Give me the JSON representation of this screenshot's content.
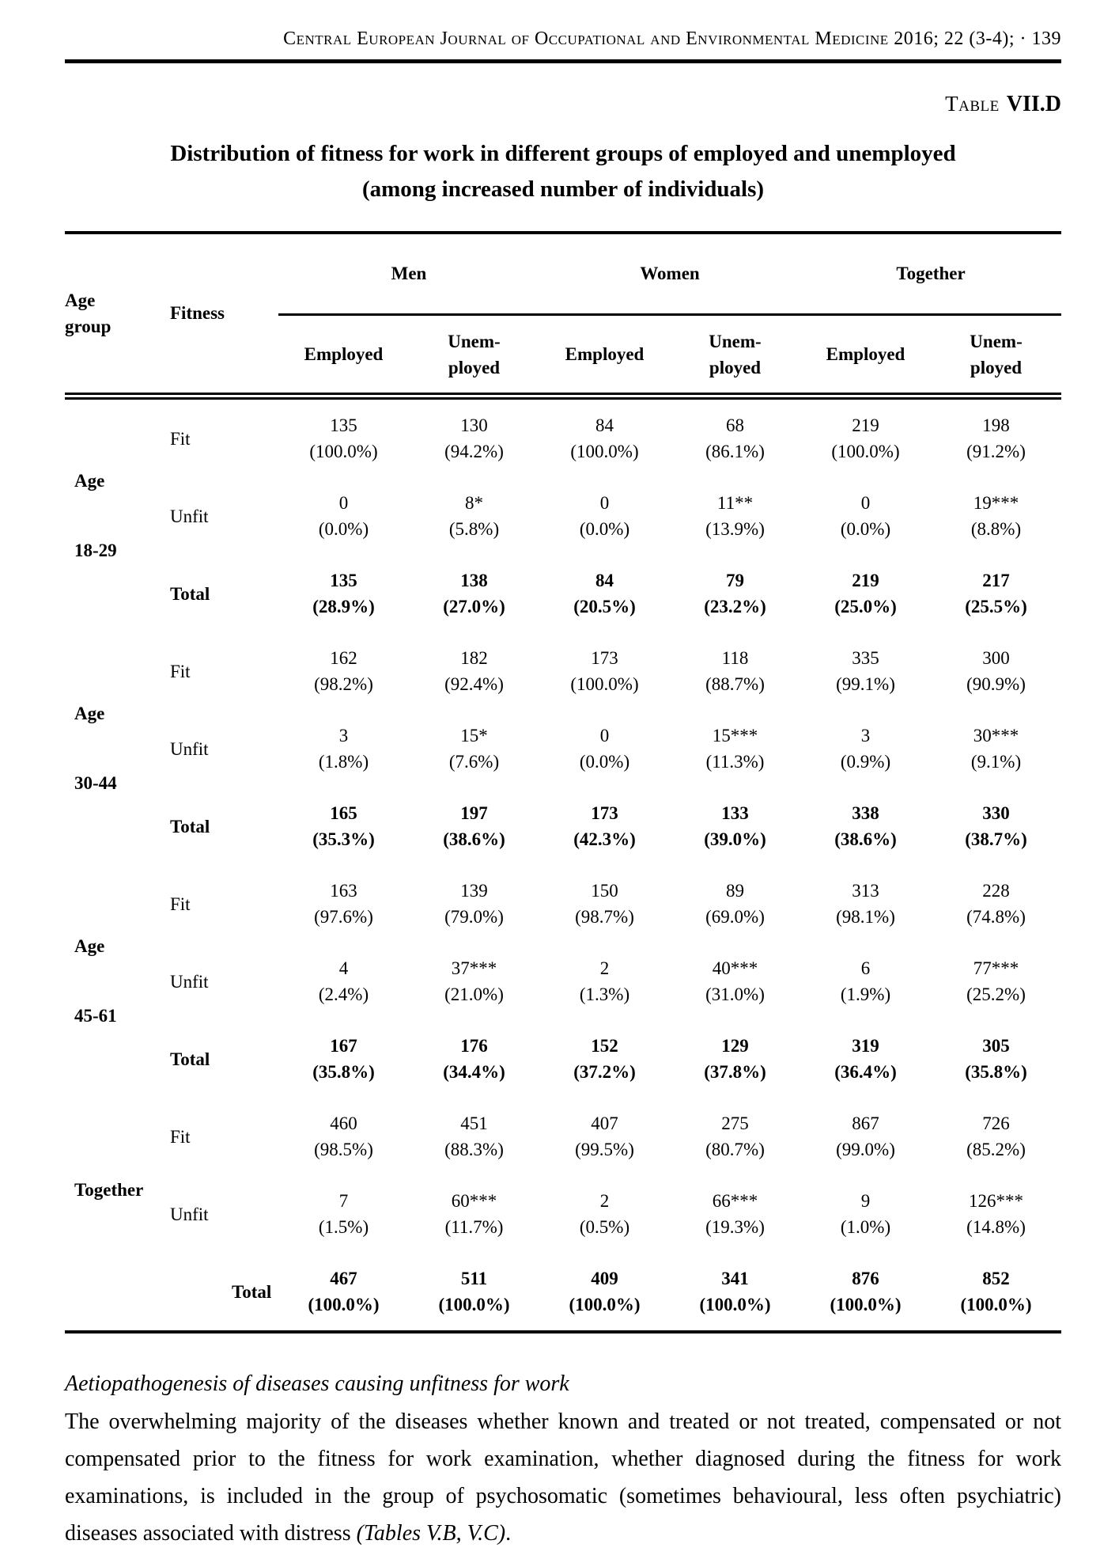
{
  "header": {
    "journal_line": "Central European Journal of Occupational and Environmental Medicine 2016; 22 (3-4); · 139",
    "table_label_prefix": "Table",
    "table_label_id": "VII.D",
    "title_line1": "Distribution of fitness for work in different groups of employed and unemployed",
    "title_line2": "(among increased number of individuals)"
  },
  "table": {
    "head": {
      "age_group": "Age\ngroup",
      "fitness": "Fitness",
      "groups": [
        "Men",
        "Women",
        "Together"
      ],
      "employed": "Employed",
      "unemployed": "Unem-\nployed"
    },
    "blocks": [
      {
        "age_top": "Age",
        "age_bottom": "18-29",
        "rows": [
          {
            "label": "Fit",
            "bold": false,
            "cells": [
              [
                "135",
                "(100.0%)"
              ],
              [
                "130",
                "(94.2%)"
              ],
              [
                "84",
                "(100.0%)"
              ],
              [
                "68",
                "(86.1%)"
              ],
              [
                "219",
                "(100.0%)"
              ],
              [
                "198",
                "(91.2%)"
              ]
            ]
          },
          {
            "label": "Unfit",
            "bold": false,
            "cells": [
              [
                "0",
                "(0.0%)"
              ],
              [
                "8*",
                "(5.8%)"
              ],
              [
                "0",
                "(0.0%)"
              ],
              [
                "11**",
                "(13.9%)"
              ],
              [
                "0",
                "(0.0%)"
              ],
              [
                "19***",
                "(8.8%)"
              ]
            ]
          },
          {
            "label": "Total",
            "bold": true,
            "cells": [
              [
                "135",
                "(28.9%)"
              ],
              [
                "138",
                "(27.0%)"
              ],
              [
                "84",
                "(20.5%)"
              ],
              [
                "79",
                "(23.2%)"
              ],
              [
                "219",
                "(25.0%)"
              ],
              [
                "217",
                "(25.5%)"
              ]
            ]
          }
        ]
      },
      {
        "age_top": "Age",
        "age_bottom": "30-44",
        "rows": [
          {
            "label": "Fit",
            "bold": false,
            "cells": [
              [
                "162",
                "(98.2%)"
              ],
              [
                "182",
                "(92.4%)"
              ],
              [
                "173",
                "(100.0%)"
              ],
              [
                "118",
                "(88.7%)"
              ],
              [
                "335",
                "(99.1%)"
              ],
              [
                "300",
                "(90.9%)"
              ]
            ]
          },
          {
            "label": "Unfit",
            "bold": false,
            "cells": [
              [
                "3",
                "(1.8%)"
              ],
              [
                "15*",
                "(7.6%)"
              ],
              [
                "0",
                "(0.0%)"
              ],
              [
                "15***",
                "(11.3%)"
              ],
              [
                "3",
                "(0.9%)"
              ],
              [
                "30***",
                "(9.1%)"
              ]
            ]
          },
          {
            "label": "Total",
            "bold": true,
            "cells": [
              [
                "165",
                "(35.3%)"
              ],
              [
                "197",
                "(38.6%)"
              ],
              [
                "173",
                "(42.3%)"
              ],
              [
                "133",
                "(39.0%)"
              ],
              [
                "338",
                "(38.6%)"
              ],
              [
                "330",
                "(38.7%)"
              ]
            ]
          }
        ]
      },
      {
        "age_top": "Age",
        "age_bottom": "45-61",
        "rows": [
          {
            "label": "Fit",
            "bold": false,
            "cells": [
              [
                "163",
                "(97.6%)"
              ],
              [
                "139",
                "(79.0%)"
              ],
              [
                "150",
                "(98.7%)"
              ],
              [
                "89",
                "(69.0%)"
              ],
              [
                "313",
                "(98.1%)"
              ],
              [
                "228",
                "(74.8%)"
              ]
            ]
          },
          {
            "label": "Unfit",
            "bold": false,
            "cells": [
              [
                "4",
                "(2.4%)"
              ],
              [
                "37***",
                "(21.0%)"
              ],
              [
                "2",
                "(1.3%)"
              ],
              [
                "40***",
                "(31.0%)"
              ],
              [
                "6",
                "(1.9%)"
              ],
              [
                "77***",
                "(25.2%)"
              ]
            ]
          },
          {
            "label": "Total",
            "bold": true,
            "cells": [
              [
                "167",
                "(35.8%)"
              ],
              [
                "176",
                "(34.4%)"
              ],
              [
                "152",
                "(37.2%)"
              ],
              [
                "129",
                "(37.8%)"
              ],
              [
                "319",
                "(36.4%)"
              ],
              [
                "305",
                "(35.8%)"
              ]
            ]
          }
        ]
      },
      {
        "age_top": "Together",
        "age_bottom": "",
        "rows": [
          {
            "label": "Fit",
            "bold": false,
            "cells": [
              [
                "460",
                "(98.5%)"
              ],
              [
                "451",
                "(88.3%)"
              ],
              [
                "407",
                "(99.5%)"
              ],
              [
                "275",
                "(80.7%)"
              ],
              [
                "867",
                "(99.0%)"
              ],
              [
                "726",
                "(85.2%)"
              ]
            ]
          },
          {
            "label": "Unfit",
            "bold": false,
            "cells": [
              [
                "7",
                "(1.5%)"
              ],
              [
                "60***",
                "(11.7%)"
              ],
              [
                "2",
                "(0.5%)"
              ],
              [
                "66***",
                "(19.3%)"
              ],
              [
                "9",
                "(1.0%)"
              ],
              [
                "126***",
                "(14.8%)"
              ]
            ]
          },
          {
            "label": "Total",
            "bold": true,
            "indent": true,
            "cells": [
              [
                "467",
                "(100.0%)"
              ],
              [
                "511",
                "(100.0%)"
              ],
              [
                "409",
                "(100.0%)"
              ],
              [
                "341",
                "(100.0%)"
              ],
              [
                "876",
                "(100.0%)"
              ],
              [
                "852",
                "(100.0%)"
              ]
            ]
          }
        ]
      }
    ]
  },
  "footer": {
    "section_heading": "Aetiopathogenesis of diseases causing unfitness for work",
    "paragraph_main": "The overwhelming majority of the diseases whether known and treated or not treated, compensated or not compensated prior to the fitness for work examination, whether diagnosed during the fitness for work examinations, is included in the group of psychosomatic (sometimes behavioural, less often psychiatric) diseases associated with distress ",
    "paragraph_ref": "(Tables V.B, V.C)",
    "paragraph_end": "."
  }
}
